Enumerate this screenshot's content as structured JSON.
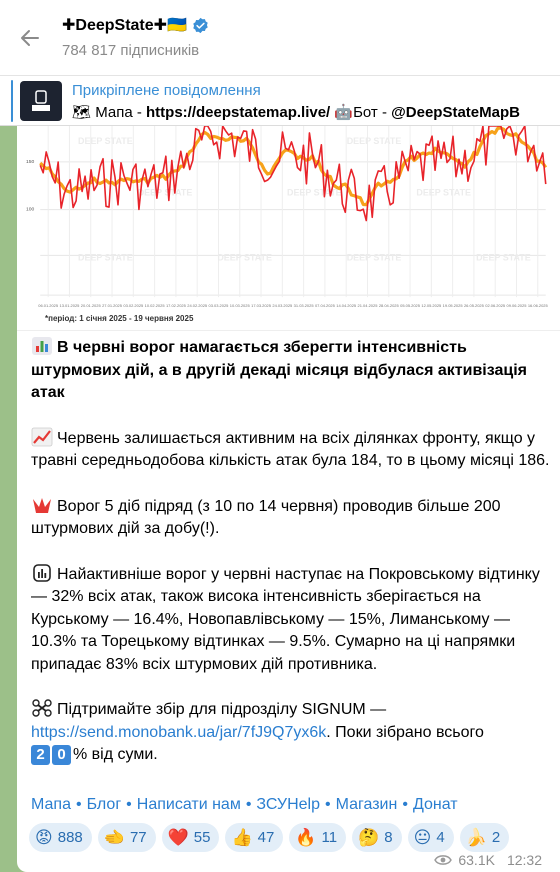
{
  "channel": {
    "title": "✚DeepState✚🇺🇦",
    "subscribers": "784 817 підписників"
  },
  "pinned": {
    "label": "Прикріплене повідомлення",
    "text_prefix": "🗺 Мапа - ",
    "map_link": "https://deepstatemap.live/",
    "bot_prefix": " 🤖Бот - ",
    "bot_handle": "@DeepStateMapB"
  },
  "chart": {
    "period_note": "*період: 1 січня 2025 - 19 червня 2025",
    "y_ticks": [
      "150",
      "100"
    ],
    "x_ticks": [
      "06.01.2025",
      "13.01.2025",
      "20.01.2025",
      "27.01.2025",
      "03.02.2025",
      "10.02.2025",
      "17.02.2025",
      "24.02.2025",
      "03.03.2025",
      "10.03.2025",
      "17.03.2025",
      "24.03.2025",
      "31.03.2025",
      "07.04.2025",
      "14.04.2025",
      "21.04.2025",
      "28.04.2025",
      "05.05.2025",
      "12.05.2025",
      "19.05.2025",
      "26.05.2025",
      "02.06.2025",
      "09.06.2025",
      "16.06.2025"
    ],
    "watermark": "DEEP STATE",
    "colors": {
      "daily": "#e8232a",
      "average": "#f6a21a"
    }
  },
  "message": {
    "headline": "В червні ворог намагається зберегти інтенсивність штурмових дій, а в другій декаді місяця відбулася активізація атак",
    "p1": "Червень залишається активним на всіх ділянках фронту, якщо у травні середньодобова кількість атак була 184, то в цьому місяці 186.",
    "p2": "Ворог 5 діб підряд (з 10 по 14 червня) проводив більше 200 штурмових дій за добу(!).",
    "p3": "Найактивніше ворог у червні наступає на Покровському відтинку — 32% всіх атак, також висока інтенсивність зберігається на Курському — 16.4%, Новопавлівському — 15%, Лиманському — 10.3% та Торецькому відтинках — 9.5%. Сумарно на ці напрямки припадає 83% всіх штурмових дій противника.",
    "p4_prefix": "Підтримайте збір для підрозділу SIGNUM —",
    "p4_link": "https://send.monobank.ua/jar/7fJ9Q7yx6k",
    "p4_mid": ". Поки зібрано всього ",
    "p4_d1": "2",
    "p4_d2": "0",
    "p4_suffix": "% від суми."
  },
  "footer_links": [
    "Мапа",
    "Блог",
    "Написати нам",
    "ЗСУHelp",
    "Магазин",
    "Донат"
  ],
  "reactions": [
    {
      "emoji": "😡",
      "count": "888"
    },
    {
      "emoji": "🫲",
      "count": "77"
    },
    {
      "emoji": "❤️",
      "count": "55"
    },
    {
      "emoji": "👍",
      "count": "47"
    },
    {
      "emoji": "🔥",
      "count": "11"
    },
    {
      "emoji": "🤔",
      "count": "8"
    },
    {
      "emoji": "😐",
      "count": "4"
    },
    {
      "emoji": "🍌",
      "count": "2"
    }
  ],
  "meta": {
    "views": "63.1K",
    "time": "12:32"
  }
}
